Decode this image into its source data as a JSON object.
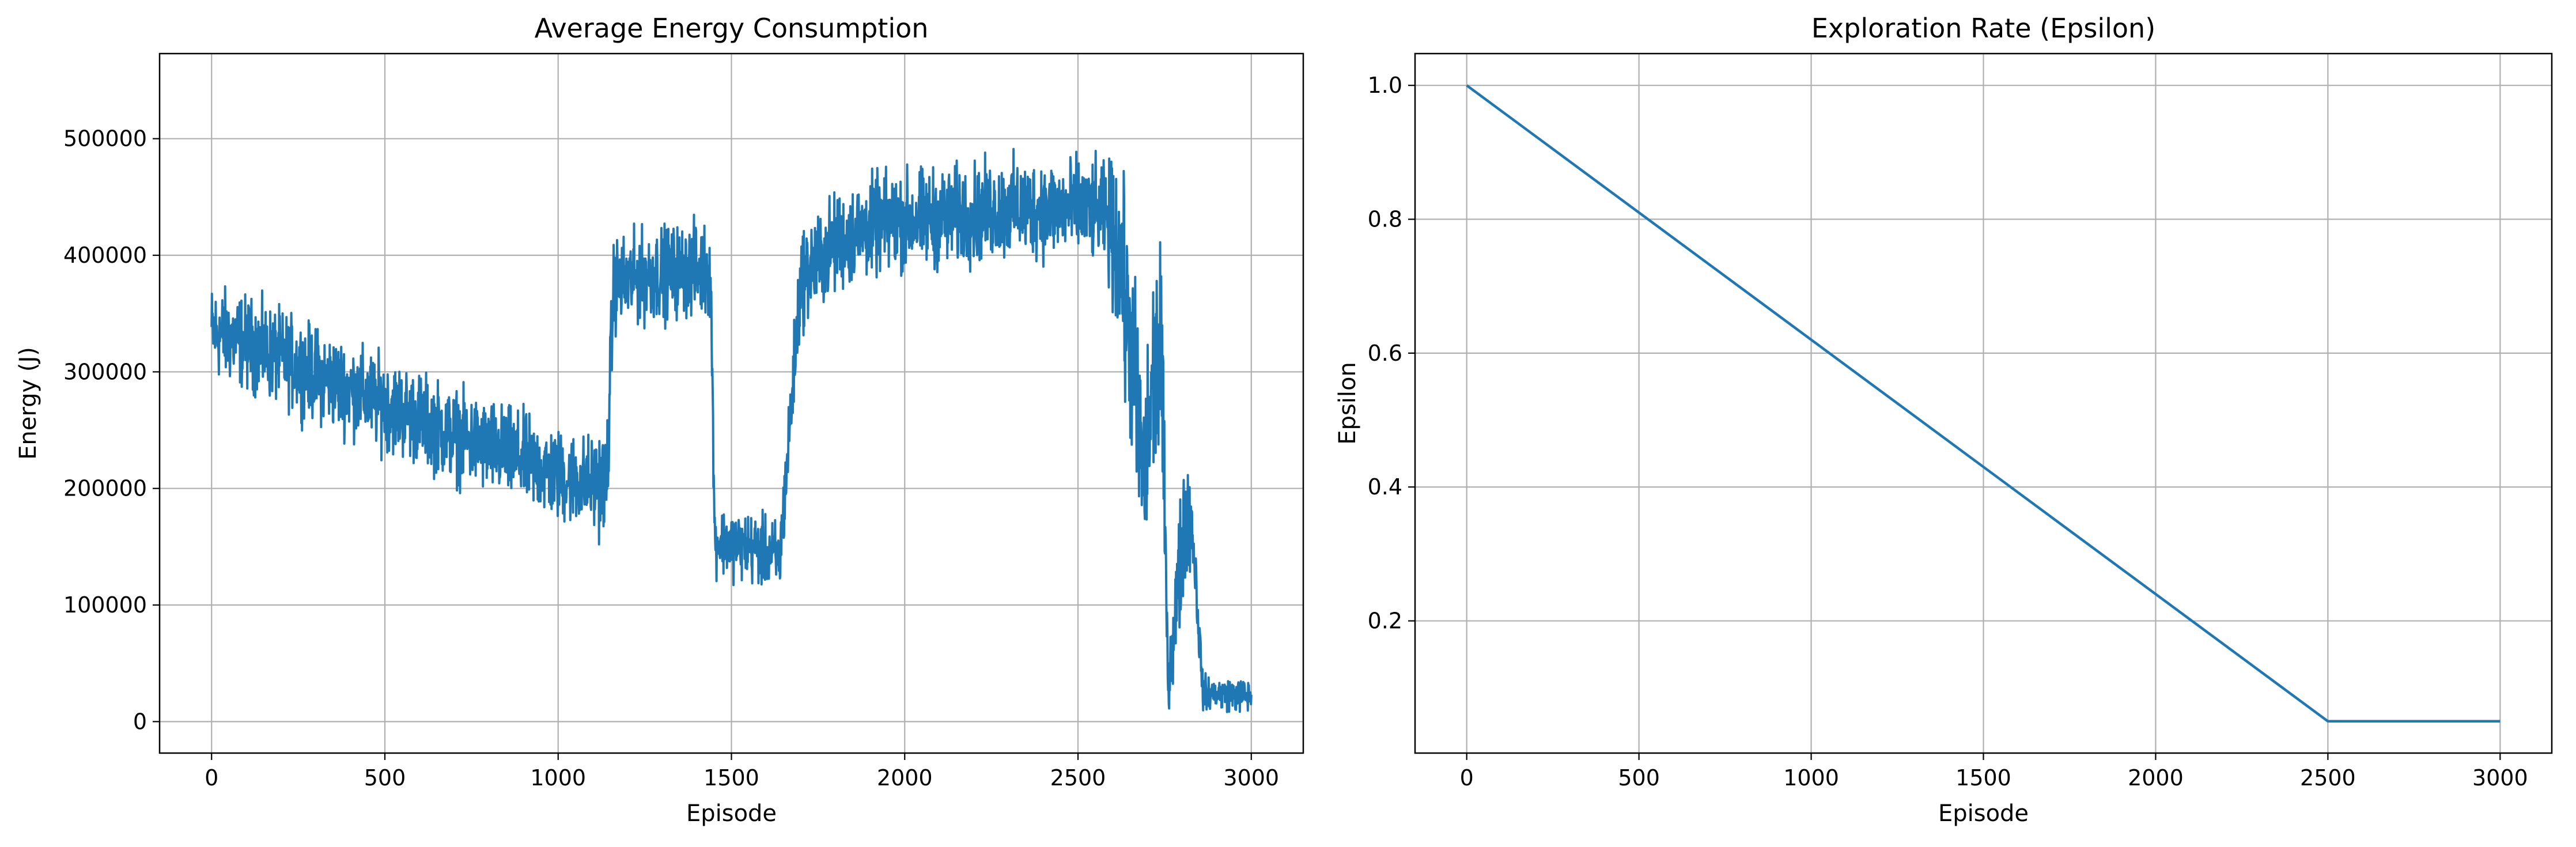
{
  "colors": {
    "series": "#1f77b4",
    "grid": "#b0b0b0",
    "axes": "#000000"
  },
  "chart_data": [
    {
      "type": "line",
      "title": "Average Energy Consumption",
      "xlabel": "Episode",
      "ylabel": "Energy (J)",
      "xlim": [
        -150,
        3150
      ],
      "ylim": [
        -27000,
        573000
      ],
      "xticks": [
        0,
        500,
        1000,
        1500,
        2000,
        2500,
        3000
      ],
      "yticks": [
        0,
        100000,
        200000,
        300000,
        400000,
        500000
      ],
      "grid": true,
      "legend": "none",
      "series": [
        {
          "noisy": true,
          "trend": [
            [
              0,
              335000
            ],
            [
              100,
              325000
            ],
            [
              200,
              312000
            ],
            [
              300,
              298000
            ],
            [
              400,
              285000
            ],
            [
              500,
              272000
            ],
            [
              600,
              260000
            ],
            [
              700,
              245000
            ],
            [
              800,
              235000
            ],
            [
              900,
              225000
            ],
            [
              1000,
              210000
            ],
            [
              1100,
              205000
            ],
            [
              1140,
              205000
            ],
            [
              1160,
              375000
            ],
            [
              1300,
              385000
            ],
            [
              1400,
              388000
            ],
            [
              1440,
              385000
            ],
            [
              1452,
              155000
            ],
            [
              1550,
              150000
            ],
            [
              1640,
              140000
            ],
            [
              1700,
              380000
            ],
            [
              1800,
              410000
            ],
            [
              1900,
              425000
            ],
            [
              2000,
              430000
            ],
            [
              2100,
              432000
            ],
            [
              2200,
              435000
            ],
            [
              2300,
              440000
            ],
            [
              2400,
              440000
            ],
            [
              2500,
              440000
            ],
            [
              2580,
              435000
            ],
            [
              2620,
              400000
            ],
            [
              2660,
              300000
            ],
            [
              2690,
              200000
            ],
            [
              2720,
              300000
            ],
            [
              2740,
              320000
            ],
            [
              2760,
              30000
            ],
            [
              2790,
              120000
            ],
            [
              2810,
              180000
            ],
            [
              2830,
              170000
            ],
            [
              2860,
              25000
            ],
            [
              3000,
              22000
            ]
          ],
          "spread": [
            [
              0,
              28000
            ],
            [
              1100,
              28000
            ],
            [
              1140,
              35000
            ],
            [
              1160,
              28000
            ],
            [
              1440,
              28000
            ],
            [
              1452,
              20000
            ],
            [
              1640,
              22000
            ],
            [
              1700,
              30000
            ],
            [
              2580,
              30000
            ],
            [
              2620,
              60000
            ],
            [
              2740,
              70000
            ],
            [
              2760,
              15000
            ],
            [
              2800,
              45000
            ],
            [
              2860,
              10000
            ],
            [
              3000,
              10000
            ]
          ],
          "ymin": 1000,
          "ymax": 545000
        }
      ]
    },
    {
      "type": "line",
      "title": "Exploration Rate (Epsilon)",
      "xlabel": "Episode",
      "ylabel": "Epsilon",
      "xlim": [
        -150,
        3150
      ],
      "ylim": [
        0.0025,
        1.0475
      ],
      "xticks": [
        0,
        500,
        1000,
        1500,
        2000,
        2500,
        3000
      ],
      "yticks": [
        0.2,
        0.4,
        0.6,
        0.8,
        1.0
      ],
      "ytick_labels": [
        "0.2",
        "0.4",
        "0.6",
        "0.8",
        "1.0"
      ],
      "grid": true,
      "legend": "none",
      "series": [
        {
          "x": [
            0,
            2500,
            3000
          ],
          "y": [
            1.0,
            0.05,
            0.05
          ]
        }
      ]
    }
  ]
}
